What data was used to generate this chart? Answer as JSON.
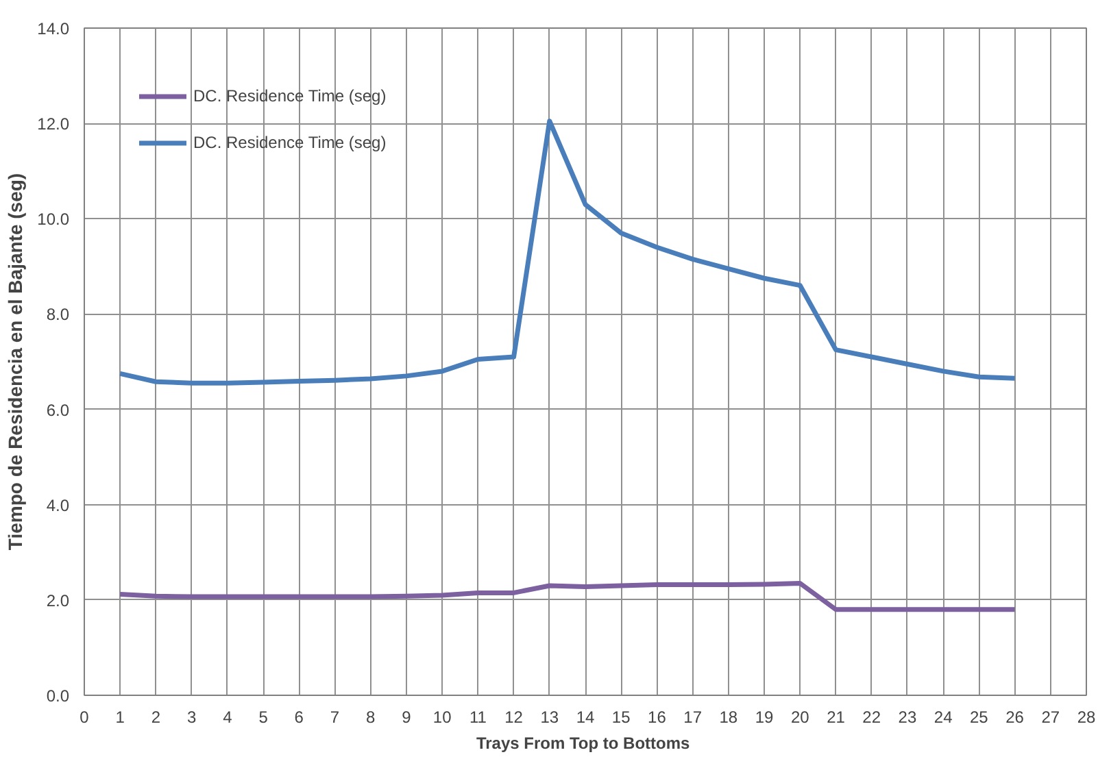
{
  "chart_data": {
    "type": "line",
    "xlabel": "Trays From  Top to Bottoms",
    "ylabel": "Tiempo de Residencia en el Bajante (seg)",
    "x": [
      1,
      2,
      3,
      4,
      5,
      6,
      7,
      8,
      9,
      10,
      11,
      12,
      13,
      14,
      15,
      16,
      17,
      18,
      19,
      20,
      21,
      22,
      23,
      24,
      25,
      26
    ],
    "series": [
      {
        "name": "DC. Residence Time (seg)",
        "color": "#7d60a0",
        "values": [
          2.12,
          2.08,
          2.07,
          2.07,
          2.07,
          2.07,
          2.07,
          2.07,
          2.08,
          2.1,
          2.15,
          2.15,
          2.3,
          2.28,
          2.3,
          2.32,
          2.32,
          2.32,
          2.33,
          2.35,
          1.8,
          1.8,
          1.8,
          1.8,
          1.8,
          1.8
        ]
      },
      {
        "name": "DC. Residence Time (seg)",
        "color": "#4a7ebb",
        "values": [
          6.75,
          6.58,
          6.55,
          6.55,
          6.57,
          6.59,
          6.61,
          6.64,
          6.7,
          6.8,
          7.05,
          7.1,
          12.05,
          10.3,
          9.7,
          9.4,
          9.15,
          8.95,
          8.75,
          8.6,
          7.25,
          7.1,
          6.95,
          6.8,
          6.68,
          6.65
        ]
      }
    ],
    "xlim": [
      0,
      28
    ],
    "xticks": [
      0,
      1,
      2,
      3,
      4,
      5,
      6,
      7,
      8,
      9,
      10,
      11,
      12,
      13,
      14,
      15,
      16,
      17,
      18,
      19,
      20,
      21,
      22,
      23,
      24,
      25,
      26,
      27,
      28
    ],
    "ylim": [
      0,
      14
    ],
    "yticks": [
      {
        "value": 0,
        "label": "0.0"
      },
      {
        "value": 2,
        "label": "2.0"
      },
      {
        "value": 4,
        "label": "4.0"
      },
      {
        "value": 6,
        "label": "6.0"
      },
      {
        "value": 8,
        "label": "8.0"
      },
      {
        "value": 10,
        "label": "10.0"
      },
      {
        "value": 12,
        "label": "12.0"
      },
      {
        "value": 14,
        "label": "14.0"
      }
    ],
    "grid": true,
    "legend": "top left",
    "marker": "none",
    "line_style": "solid"
  }
}
